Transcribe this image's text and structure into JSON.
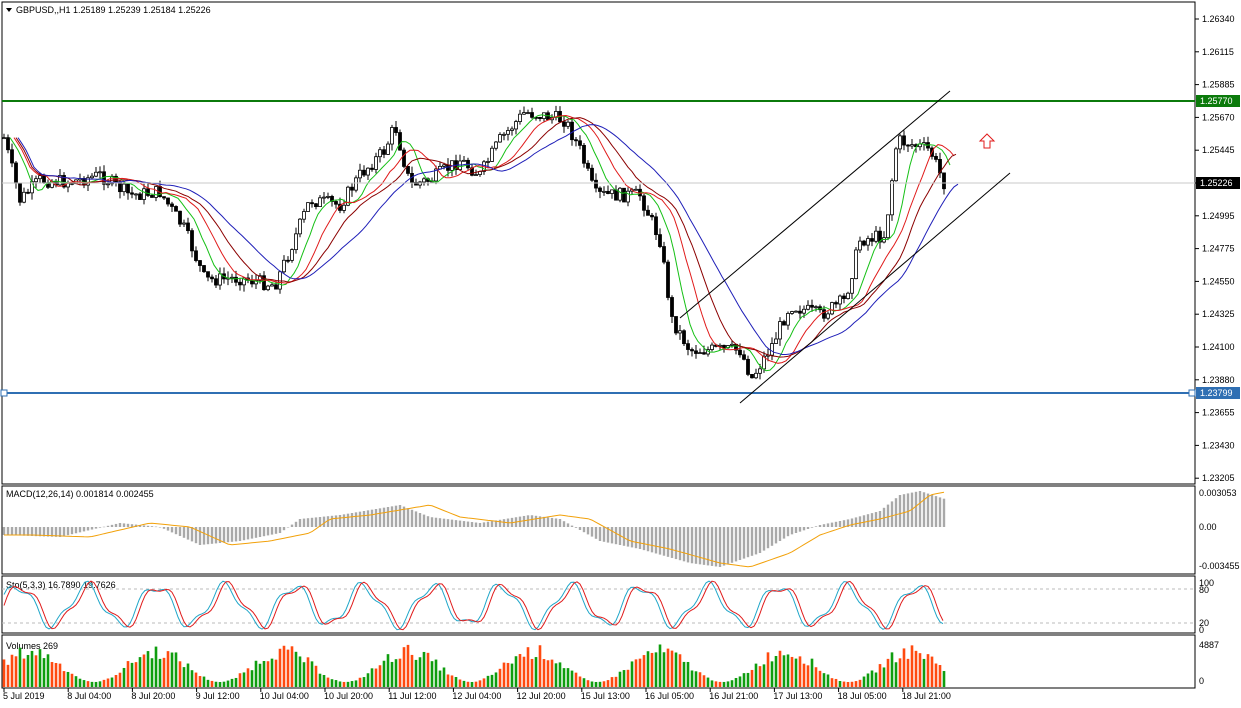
{
  "main": {
    "header": "GBPUSD,,H1  1.25189 1.25239 1.25184 1.25226",
    "price_labels": [
      "1.26340",
      "1.26115",
      "1.25885",
      "1.25670",
      "1.25445",
      "1.25226",
      "1.24995",
      "1.24775",
      "1.24550",
      "1.24325",
      "1.24100",
      "1.23880",
      "1.23655",
      "1.23430",
      "1.23205"
    ],
    "resistance_label": "1.25770",
    "support_label": "1.23799",
    "current_label": "1.25226",
    "colors": {
      "resistance": "#0b7a0b",
      "support": "#2f6fb3",
      "ma_fast": "#16c016",
      "ma_mid": "#e01b1b",
      "ma_slow": "#8b0000",
      "ma_long": "#1f1fb8",
      "arrow": "#e01b1b"
    }
  },
  "macd": {
    "header": "MACD(12,26,14) 0.001814 0.002455",
    "labels": [
      "0.003053",
      "0.00",
      "-0.003455"
    ],
    "colors": {
      "histogram": "#a9a9a9",
      "signal": "#f2a10a"
    }
  },
  "stoch": {
    "header": "Sto(5,3,3) 16.7890 19.7626",
    "labels": [
      "100",
      "80",
      "20",
      "0"
    ],
    "colors": {
      "main": "#21a7c9",
      "signal": "#e01b1b"
    }
  },
  "volumes": {
    "header": "Volumes 269",
    "labels": [
      "4887",
      "0"
    ],
    "colors": {
      "up": "#0f9d0f",
      "down": "#ff4a10"
    }
  },
  "time_labels": [
    "5 Jul 2019",
    "8 Jul 04:00",
    "8 Jul 20:00",
    "9 Jul 12:00",
    "10 Jul 04:00",
    "10 Jul 20:00",
    "11 Jul 12:00",
    "12 Jul 04:00",
    "12 Jul 20:00",
    "15 Jul 13:00",
    "16 Jul 05:00",
    "16 Jul 21:00",
    "17 Jul 13:00",
    "18 Jul 05:00",
    "18 Jul 21:00"
  ]
}
